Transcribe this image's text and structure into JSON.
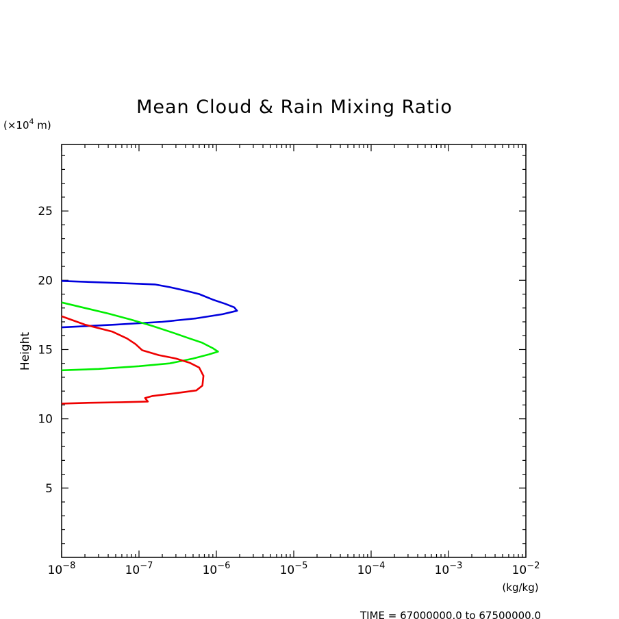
{
  "chart_data": {
    "type": "line",
    "title": "Mean Cloud & Rain Mixing Ratio",
    "ylabel": "Height",
    "yunit": {
      "prefix": "(×10",
      "exp": "4",
      "suffix": " m)"
    },
    "xunit": "(kg/kg)",
    "footer": "TIME = 67000000.0 to 67500000.0",
    "xscale": "log",
    "xlim": [
      1e-08,
      0.01
    ],
    "ylim": [
      0,
      29.8
    ],
    "xticks": [
      {
        "base": "10",
        "exp": "−8"
      },
      {
        "base": "10",
        "exp": "−7"
      },
      {
        "base": "10",
        "exp": "−6"
      },
      {
        "base": "10",
        "exp": "−5"
      },
      {
        "base": "10",
        "exp": "−4"
      },
      {
        "base": "10",
        "exp": "−3"
      },
      {
        "base": "10",
        "exp": "−2"
      }
    ],
    "yticks": [
      "5",
      "10",
      "15",
      "20",
      "25"
    ],
    "grid": false,
    "series": [
      {
        "color": "#0000dd",
        "points": [
          [
            1e-08,
            19.95
          ],
          [
            3e-08,
            19.85
          ],
          [
            1e-07,
            19.75
          ],
          [
            1.6e-07,
            19.7
          ],
          [
            2.5e-07,
            19.5
          ],
          [
            4e-07,
            19.25
          ],
          [
            6e-07,
            19.0
          ],
          [
            9e-07,
            18.6
          ],
          [
            1.3e-06,
            18.3
          ],
          [
            1.7e-06,
            18.05
          ],
          [
            1.85e-06,
            17.8
          ],
          [
            1.2e-06,
            17.55
          ],
          [
            5.5e-07,
            17.25
          ],
          [
            2e-07,
            17.0
          ],
          [
            5e-08,
            16.8
          ],
          [
            1e-08,
            16.6
          ]
        ]
      },
      {
        "color": "#00ee00",
        "points": [
          [
            1e-08,
            18.4
          ],
          [
            2e-08,
            18.0
          ],
          [
            4e-08,
            17.6
          ],
          [
            8e-08,
            17.15
          ],
          [
            1.5e-07,
            16.7
          ],
          [
            2.8e-07,
            16.2
          ],
          [
            4.5e-07,
            15.8
          ],
          [
            6.5e-07,
            15.5
          ],
          [
            9e-07,
            15.1
          ],
          [
            1.05e-06,
            14.85
          ],
          [
            8e-07,
            14.65
          ],
          [
            5e-07,
            14.35
          ],
          [
            2.5e-07,
            14.0
          ],
          [
            1e-07,
            13.8
          ],
          [
            3e-08,
            13.6
          ],
          [
            1e-08,
            13.5
          ]
        ]
      },
      {
        "color": "#ee0000",
        "points": [
          [
            1e-08,
            17.4
          ],
          [
            2e-08,
            16.8
          ],
          [
            4.5e-08,
            16.3
          ],
          [
            7e-08,
            15.8
          ],
          [
            9e-08,
            15.4
          ],
          [
            1.1e-07,
            14.95
          ],
          [
            1.8e-07,
            14.6
          ],
          [
            3e-07,
            14.35
          ],
          [
            4.5e-07,
            14.05
          ],
          [
            6e-07,
            13.7
          ],
          [
            6.8e-07,
            13.1
          ],
          [
            6.6e-07,
            12.4
          ],
          [
            5.5e-07,
            12.05
          ],
          [
            3e-07,
            11.85
          ],
          [
            1.5e-07,
            11.65
          ],
          [
            1.2e-07,
            11.5
          ],
          [
            1.3e-07,
            11.25
          ],
          [
            6e-08,
            11.2
          ],
          [
            2e-08,
            11.15
          ],
          [
            1e-08,
            11.1
          ]
        ]
      }
    ]
  }
}
